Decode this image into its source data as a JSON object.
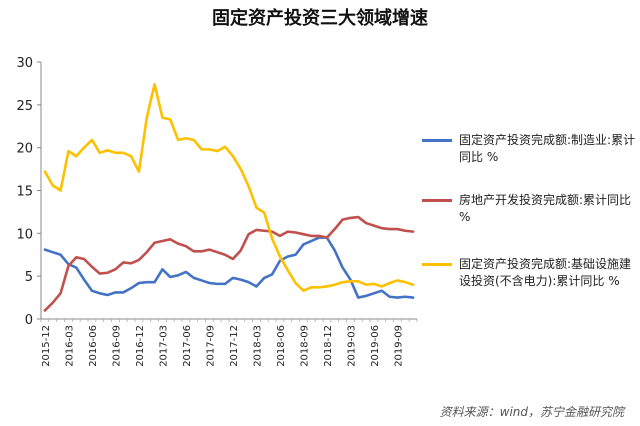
{
  "chart_data": {
    "type": "line",
    "title": "固定资产投资三大领域增速",
    "x": [
      "2015-12",
      "2016-01",
      "2016-02",
      "2016-03",
      "2016-04",
      "2016-05",
      "2016-06",
      "2016-07",
      "2016-08",
      "2016-09",
      "2016-10",
      "2016-11",
      "2016-12",
      "2017-01",
      "2017-02",
      "2017-03",
      "2017-04",
      "2017-05",
      "2017-06",
      "2017-07",
      "2017-08",
      "2017-09",
      "2017-10",
      "2017-11",
      "2017-12",
      "2018-01",
      "2018-02",
      "2018-03",
      "2018-04",
      "2018-05",
      "2018-06",
      "2018-07",
      "2018-08",
      "2018-09",
      "2018-10",
      "2018-11",
      "2018-12",
      "2019-01",
      "2019-02",
      "2019-03",
      "2019-04",
      "2019-05",
      "2019-06",
      "2019-07",
      "2019-08",
      "2019-09",
      "2019-10",
      "2019-11"
    ],
    "x_tick_labels": [
      "2015-12",
      "2016-03",
      "2016-06",
      "2016-09",
      "2016-12",
      "2017-03",
      "2017-06",
      "2017-09",
      "2017-12",
      "2018-03",
      "2018-06",
      "2018-09",
      "2018-12",
      "2019-03",
      "2019-06",
      "2019-09"
    ],
    "ylim": [
      0,
      30
    ],
    "y_ticks": [
      "0",
      "5",
      "10",
      "15",
      "20",
      "25",
      "30"
    ],
    "grid": false,
    "legend_position": "right",
    "series": [
      {
        "name": "固定资产投资完成额:制造业:累计同比 %",
        "color": "#4472C4",
        "values": [
          8.1,
          7.8,
          7.5,
          6.4,
          6.0,
          4.6,
          3.3,
          3.0,
          2.8,
          3.1,
          3.1,
          3.6,
          4.2,
          4.3,
          4.3,
          5.8,
          4.9,
          5.1,
          5.5,
          4.8,
          4.5,
          4.2,
          4.1,
          4.1,
          4.8,
          4.6,
          4.3,
          3.8,
          4.8,
          5.2,
          6.8,
          7.3,
          7.5,
          8.7,
          9.1,
          9.5,
          9.5,
          8.0,
          6.0,
          4.6,
          2.5,
          2.7,
          3.0,
          3.3,
          2.6,
          2.5,
          2.6,
          2.5
        ]
      },
      {
        "name": "房地产开发投资完成额:累计同比 %",
        "color": "#C0504D",
        "values": [
          1.0,
          1.9,
          3.0,
          6.2,
          7.2,
          7.0,
          6.1,
          5.3,
          5.4,
          5.8,
          6.6,
          6.5,
          6.9,
          7.8,
          8.9,
          9.1,
          9.3,
          8.8,
          8.5,
          7.9,
          7.9,
          8.1,
          7.8,
          7.5,
          7.0,
          8.0,
          9.9,
          10.4,
          10.3,
          10.2,
          9.7,
          10.2,
          10.1,
          9.9,
          9.7,
          9.7,
          9.5,
          10.5,
          11.6,
          11.8,
          11.9,
          11.2,
          10.9,
          10.6,
          10.5,
          10.5,
          10.3,
          10.2
        ]
      },
      {
        "name": "固定资产投资完成额:基础设施建设投资(不含电力):累计同比 %",
        "color": "#FFC000",
        "values": [
          17.2,
          15.6,
          15.0,
          19.6,
          19.0,
          20.0,
          20.9,
          19.4,
          19.7,
          19.4,
          19.4,
          19.0,
          17.2,
          23.5,
          27.4,
          23.5,
          23.3,
          20.9,
          21.1,
          20.9,
          19.8,
          19.8,
          19.6,
          20.1,
          19.0,
          17.5,
          15.5,
          13.0,
          12.4,
          9.4,
          7.3,
          5.7,
          4.2,
          3.3,
          3.7,
          3.7,
          3.8,
          4.0,
          4.3,
          4.4,
          4.4,
          4.0,
          4.1,
          3.8,
          4.2,
          4.5,
          4.3,
          4.0
        ]
      }
    ]
  },
  "source_note": "资料来源：wind，苏宁金融研究院"
}
